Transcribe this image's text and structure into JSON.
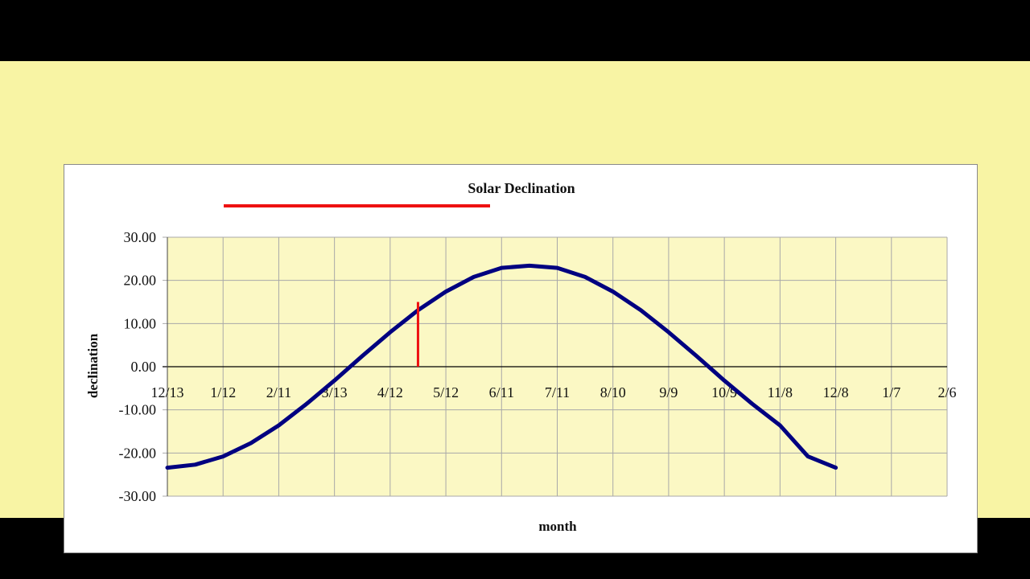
{
  "chart_data": {
    "type": "line",
    "title": "Solar Declination",
    "xlabel": "month",
    "ylabel": "declination",
    "x_tick_labels": [
      "12/13",
      "1/12",
      "2/11",
      "3/13",
      "4/12",
      "5/12",
      "6/11",
      "7/11",
      "8/10",
      "9/9",
      "10/9",
      "11/8",
      "12/8",
      "1/7",
      "2/6"
    ],
    "y_tick_labels": [
      "30.00",
      "20.00",
      "10.00",
      "0.00",
      "-10.00",
      "-20.00",
      "-30.00"
    ],
    "ylim": [
      -30,
      30
    ],
    "xlim": [
      0,
      420
    ],
    "x_unit": "days from 12/13",
    "grid": true,
    "legend": "none",
    "series": [
      {
        "color": "#000080",
        "x": [
          0,
          15,
          30,
          45,
          60,
          75,
          90,
          105,
          120,
          135,
          150,
          165,
          180,
          195,
          210,
          225,
          240,
          255,
          270,
          285,
          300,
          315,
          330,
          345,
          360
        ],
        "values": [
          -23.4,
          -22.7,
          -20.8,
          -17.7,
          -13.6,
          -8.6,
          -3.2,
          2.5,
          8.0,
          13.1,
          17.4,
          20.8,
          22.9,
          23.4,
          22.9,
          20.8,
          17.4,
          13.1,
          8.0,
          2.5,
          -3.2,
          -8.6,
          -13.6,
          -20.8,
          -23.4
        ]
      }
    ],
    "annotations": [
      {
        "type": "vertical-marker",
        "color": "#ee1111",
        "x": 135,
        "y_from": 0,
        "y_to": 15
      },
      {
        "type": "underline-marker",
        "color": "#ee1111"
      }
    ],
    "colors": {
      "plot_background": "#fbf8c4",
      "frame_background": "#f8f4a4",
      "curve": "#000080",
      "marker": "#ee1111",
      "grid": "#a8a8a8"
    }
  }
}
